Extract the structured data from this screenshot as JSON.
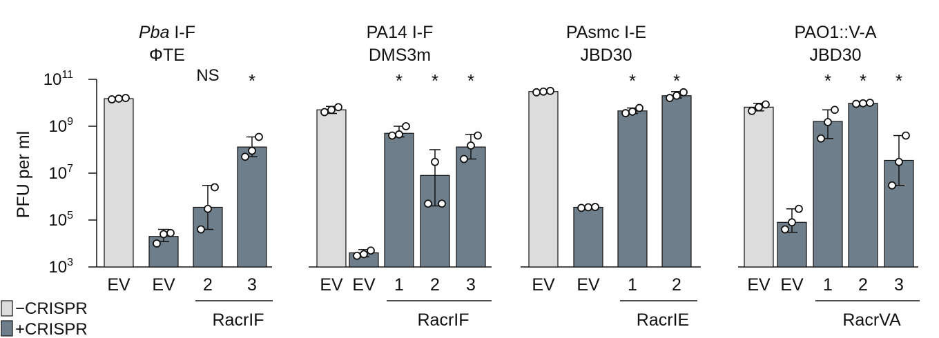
{
  "colors": {
    "minus_crispr": "#dcdcdc",
    "plus_crispr": "#6e7f8b",
    "stroke": "#111111"
  },
  "y_axis": {
    "label": "PFU per ml",
    "tick_bases": [
      "10",
      "10",
      "10",
      "10",
      "10"
    ],
    "tick_exponents": [
      "3",
      "5",
      "7",
      "9",
      "11"
    ]
  },
  "legend": {
    "items": [
      {
        "label": "−CRISPR",
        "color": "#dcdcdc"
      },
      {
        "label": "+CRISPR",
        "color": "#6e7f8b"
      }
    ],
    "position": "bottom-left"
  },
  "chart_data": [
    {
      "type": "bar",
      "scale": "log10",
      "ylim": [
        1000,
        100000000000
      ],
      "title_italic": "Pba",
      "title_rest": " I-F",
      "subtitle": "ΦTE",
      "categories": [
        "EV",
        "EV",
        "2",
        "3"
      ],
      "crispr": [
        "-",
        "+",
        "+",
        "+"
      ],
      "values": [
        15000000000,
        20000,
        350000,
        130000000
      ],
      "err_low": [
        14000000000,
        12000,
        40000,
        50000000
      ],
      "err_high": [
        15800000000,
        40000,
        3000000,
        350000000
      ],
      "points": [
        [
          14000000000,
          15000000000,
          16000000000
        ],
        [
          10000,
          25000,
          28000
        ],
        [
          40000,
          300000,
          2500000
        ],
        [
          50000000,
          90000000,
          350000000
        ]
      ],
      "sig": [
        "",
        "",
        "NS",
        "*"
      ],
      "group_label": "RacrIF",
      "group_start": 2
    },
    {
      "type": "bar",
      "scale": "log10",
      "ylim": [
        1000,
        100000000000
      ],
      "title_italic": "",
      "title_rest": "PA14 I-F",
      "subtitle": "DMS3m",
      "categories": [
        "EV",
        "EV",
        "1",
        "2",
        "3"
      ],
      "crispr": [
        "-",
        "+",
        "+",
        "+",
        "+"
      ],
      "values": [
        5000000000,
        4000,
        500000000,
        8000000,
        130000000
      ],
      "err_low": [
        3500000000,
        2700,
        350000000,
        400000,
        40000000
      ],
      "err_high": [
        7000000000,
        5500,
        1000000000,
        100000000,
        450000000
      ],
      "points": [
        [
          4000000000,
          5000000000,
          6500000000
        ],
        [
          3000,
          3500,
          5000
        ],
        [
          400000000,
          450000000,
          1000000000
        ],
        [
          500000,
          30000000,
          500000
        ],
        [
          40000000,
          150000000,
          400000000
        ]
      ],
      "sig": [
        "",
        "",
        "*",
        "*",
        "*"
      ],
      "group_label": "RacrIF",
      "group_start": 2
    },
    {
      "type": "bar",
      "scale": "log10",
      "ylim": [
        1000,
        100000000000
      ],
      "title_italic": "",
      "title_rest": "PAsmc I-E",
      "subtitle": "JBD30",
      "categories": [
        "EV",
        "EV",
        "1",
        "2"
      ],
      "crispr": [
        "-",
        "+",
        "+",
        "+"
      ],
      "values": [
        30000000000,
        350000,
        4500000000,
        20000000000
      ],
      "err_low": [
        27000000000,
        320000,
        3500000000,
        16000000000
      ],
      "err_high": [
        32000000000,
        380000,
        6000000000,
        30000000000
      ],
      "points": [
        [
          28000000000,
          30000000000,
          32000000000
        ],
        [
          330000,
          350000,
          360000
        ],
        [
          3600000000,
          4200000000,
          6000000000
        ],
        [
          16000000000,
          20000000000,
          28000000000
        ]
      ],
      "sig": [
        "",
        "",
        "*",
        "*"
      ],
      "group_label": "RacrIE",
      "group_start": 2
    },
    {
      "type": "bar",
      "scale": "log10",
      "ylim": [
        1000,
        100000000000
      ],
      "title_italic": "",
      "title_rest": "PAO1::V-A",
      "subtitle": "JBD30",
      "categories": [
        "EV",
        "EV",
        "1",
        "2",
        "3"
      ],
      "crispr": [
        "-",
        "+",
        "+",
        "+",
        "+"
      ],
      "values": [
        6500000000,
        80000,
        1600000000,
        9500000000,
        35000000
      ],
      "err_low": [
        4500000000,
        30000,
        300000000,
        8500000000,
        3000000
      ],
      "err_high": [
        9500000000,
        300000,
        5000000000,
        10500000000,
        400000000
      ],
      "points": [
        [
          4500000000,
          6500000000,
          8500000000
        ],
        [
          40000,
          80000,
          300000
        ],
        [
          300000000,
          1500000000,
          5000000000
        ],
        [
          9000000000,
          9500000000,
          10000000000
        ],
        [
          3000000,
          30000000,
          400000000
        ]
      ],
      "sig": [
        "",
        "",
        "*",
        "*",
        "*"
      ],
      "group_label": "RacrVA",
      "group_start": 2
    }
  ]
}
